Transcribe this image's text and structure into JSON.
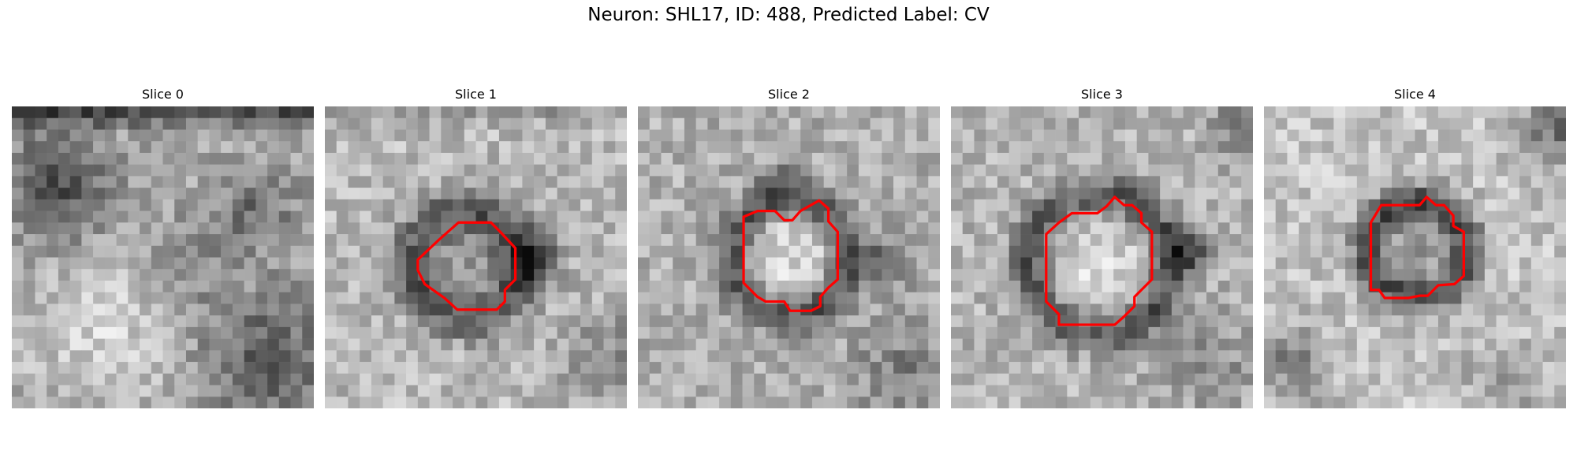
{
  "title": "Neuron: SHL17, ID: 488, Predicted Label: CV",
  "contour_color": "#ff0000",
  "panels": [
    {
      "label": "Slice 0",
      "has_contour": false
    },
    {
      "label": "Slice 1",
      "has_contour": true
    },
    {
      "label": "Slice 2",
      "has_contour": true
    },
    {
      "label": "Slice 3",
      "has_contour": true
    },
    {
      "label": "Slice 4",
      "has_contour": true
    }
  ]
}
